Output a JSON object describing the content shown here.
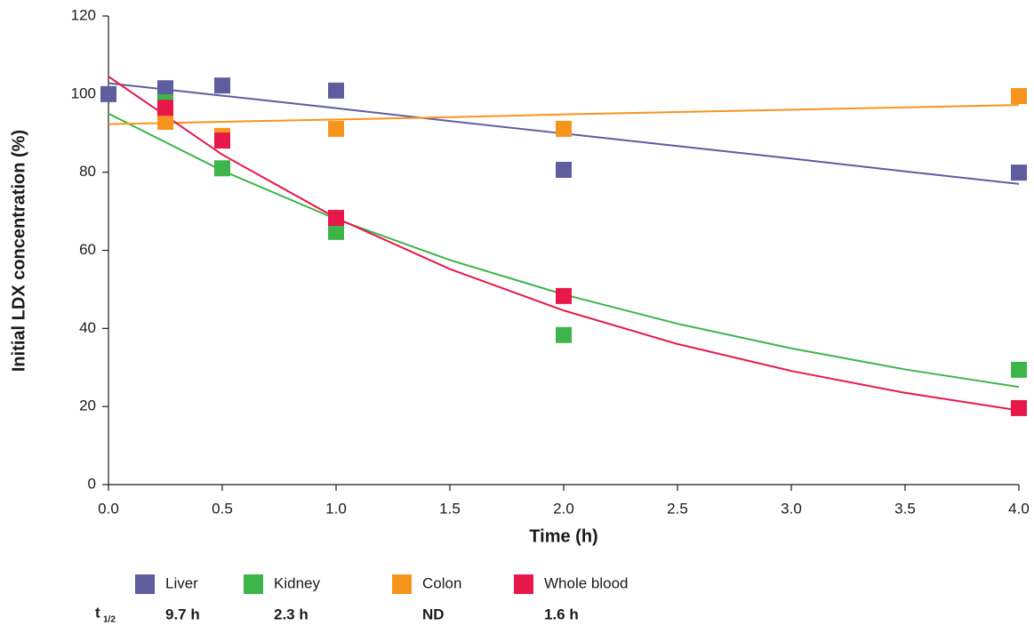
{
  "chart_data": {
    "type": "scatter",
    "xlabel": "Time (h)",
    "ylabel": "Initial LDX concentration (%)",
    "xlim": [
      0,
      4
    ],
    "ylim": [
      0,
      120
    ],
    "xticks": [
      {
        "value": 0,
        "label": "0.0"
      },
      {
        "value": 0.5,
        "label": "0.5"
      },
      {
        "value": 1,
        "label": "1.0"
      },
      {
        "value": 1.5,
        "label": "1.5"
      },
      {
        "value": 2,
        "label": "2.0"
      },
      {
        "value": 2.5,
        "label": "2.5"
      },
      {
        "value": 3,
        "label": "3.0"
      },
      {
        "value": 3.5,
        "label": "3.5"
      },
      {
        "value": 4,
        "label": "4.0"
      }
    ],
    "yticks": [
      0,
      20,
      40,
      60,
      80,
      100,
      120
    ],
    "fit_x": [
      0,
      0.5,
      1,
      1.5,
      2,
      2.5,
      3,
      3.5,
      4
    ],
    "half_life_title": "t",
    "half_life_sub": "1/2",
    "series": [
      {
        "name": "Liver",
        "color": "#5e5d9e",
        "half_life": "9.7 h",
        "x": [
          0,
          0.25,
          0.5,
          1,
          2,
          4
        ],
        "values": [
          100,
          101.5,
          102.2,
          100.9,
          80.6,
          79.9
        ],
        "fit_values": [
          102.8,
          99.6,
          96.4,
          93.1,
          89.9,
          86.7,
          83.5,
          80.2,
          77.0
        ]
      },
      {
        "name": "Kidney",
        "color": "#3db54a",
        "half_life": "2.3 h",
        "x": [
          0.25,
          0.5,
          1,
          2,
          4
        ],
        "values": [
          97.9,
          81,
          64.7,
          38.3,
          29.4
        ],
        "fit_values": [
          95,
          80.4,
          68.0,
          57.5,
          48.7,
          41.2,
          34.9,
          29.5,
          25
        ]
      },
      {
        "name": "Colon",
        "color": "#f7941d",
        "half_life": "ND",
        "x": [
          0.25,
          0.5,
          1,
          2,
          4
        ],
        "values": [
          92.9,
          89.3,
          91.1,
          91.1,
          99.5
        ],
        "fit_values": [
          92.3,
          92.9,
          93.5,
          94.1,
          94.8,
          95.4,
          96.0,
          96.6,
          97.2
        ]
      },
      {
        "name": "Whole blood",
        "color": "#e8174b",
        "half_life": "1.6 h",
        "x": [
          0.25,
          0.5,
          1,
          2,
          4
        ],
        "values": [
          96.5,
          88.1,
          68.3,
          48.3,
          19.6
        ],
        "fit_values": [
          104.5,
          84.5,
          68.3,
          55.2,
          44.6,
          36.0,
          29.1,
          23.5,
          19.0
        ]
      }
    ]
  }
}
